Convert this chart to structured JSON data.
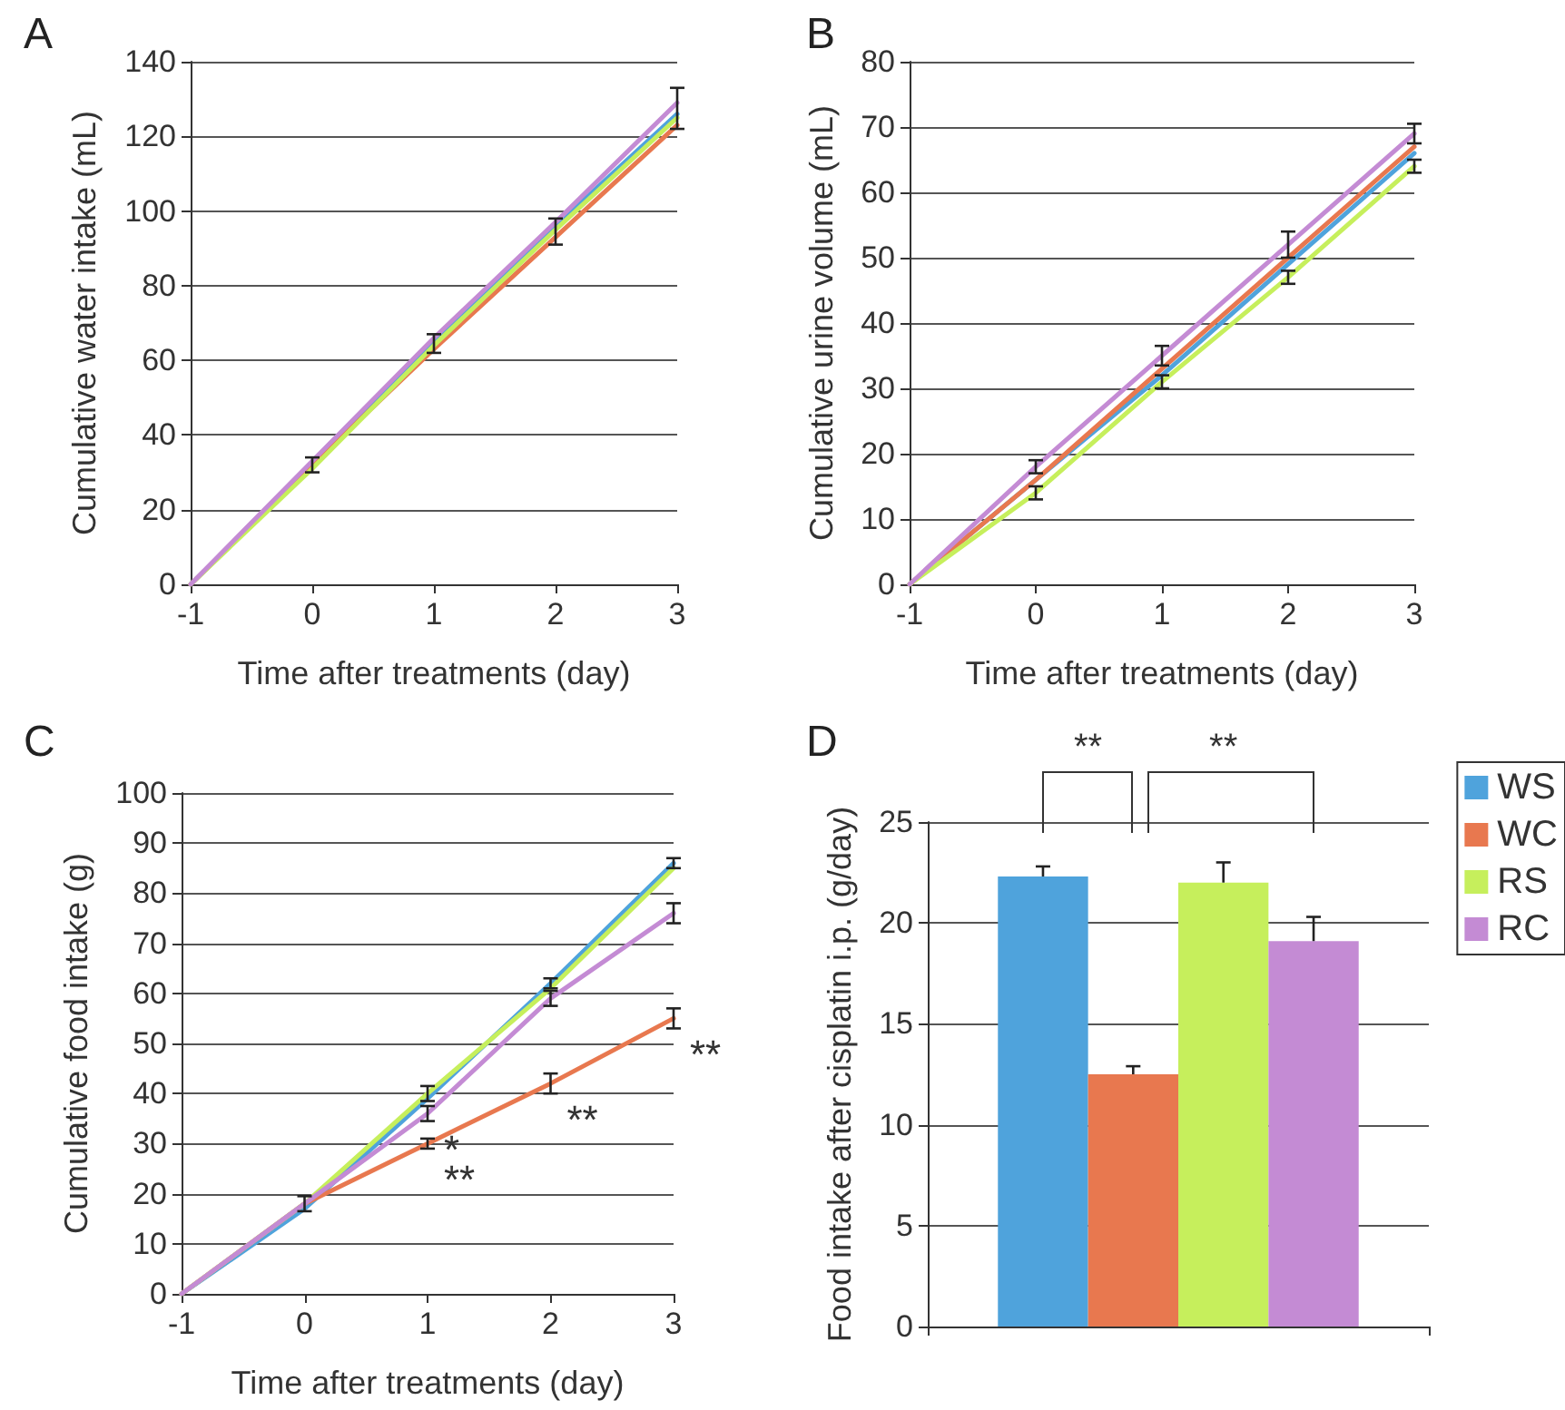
{
  "chart_data": [
    {
      "type": "line",
      "title": "A",
      "xlabel": "Time after treatments (day)",
      "ylabel": "Cumulative water intake (mL)",
      "x": [
        -1,
        0,
        1,
        2,
        3
      ],
      "xlim": [
        -1,
        3
      ],
      "xticks": [
        -1,
        0,
        1,
        2,
        3
      ],
      "ylim": [
        0,
        140
      ],
      "yticks": [
        0,
        20,
        40,
        60,
        80,
        100,
        120,
        140
      ],
      "grid": "y",
      "marker": "none",
      "line_style": "solid",
      "series": [
        {
          "color": "#4fa3dc",
          "values": [
            0,
            32,
            65,
            96,
            126
          ],
          "errors": [
            null,
            2,
            [
              62,
              67
            ],
            [
              91,
              98
            ],
            [
              122,
              133
            ]
          ]
        },
        {
          "color": "#e8784f",
          "values": [
            0,
            32,
            63,
            93,
            123
          ]
        },
        {
          "color": "#c6ef5c",
          "values": [
            0,
            31,
            64,
            95,
            125
          ]
        },
        {
          "color": "#c48bd4",
          "values": [
            0,
            33,
            66,
            97,
            129
          ]
        }
      ]
    },
    {
      "type": "line",
      "title": "B",
      "xlabel": "Time after treatments (day)",
      "ylabel": "Cumulative urine volume (mL)",
      "x": [
        -1,
        0,
        1,
        2,
        3
      ],
      "xlim": [
        -1,
        3
      ],
      "xticks": [
        -1,
        0,
        1,
        2,
        3
      ],
      "ylim": [
        0,
        80
      ],
      "yticks": [
        0,
        10,
        20,
        30,
        40,
        50,
        60,
        70,
        80
      ],
      "grid": "y",
      "marker": "none",
      "line_style": "solid",
      "series": [
        {
          "color": "#4fa3dc",
          "values": [
            0,
            16,
            32,
            49,
            66
          ]
        },
        {
          "color": "#e8784f",
          "values": [
            0,
            16,
            33,
            50,
            67
          ]
        },
        {
          "color": "#c6ef5c",
          "values": [
            0,
            14,
            31,
            47,
            64
          ],
          "errors": [
            null,
            1,
            1,
            1,
            1
          ]
        },
        {
          "color": "#c48bd4",
          "values": [
            0,
            18,
            35,
            52,
            69
          ],
          "errors": [
            null,
            1,
            1.5,
            2,
            1.5
          ]
        }
      ]
    },
    {
      "type": "line",
      "title": "C",
      "xlabel": "Time after treatments (day)",
      "ylabel": "Cumulative food intake (g)",
      "x": [
        -1,
        0,
        1,
        2,
        3
      ],
      "xlim": [
        -1,
        3
      ],
      "xticks": [
        -1,
        0,
        1,
        2,
        3
      ],
      "ylim": [
        0,
        100
      ],
      "yticks": [
        0,
        10,
        20,
        30,
        40,
        50,
        60,
        70,
        80,
        90,
        100
      ],
      "grid": "y",
      "marker": "none",
      "line_style": "solid",
      "series": [
        {
          "color": "#4fa3dc",
          "values": [
            0,
            17,
            39,
            62,
            86
          ],
          "errors": [
            null,
            null,
            null,
            1,
            1
          ]
        },
        {
          "color": "#e8784f",
          "values": [
            0,
            18,
            30,
            42,
            55
          ],
          "errors": [
            null,
            1.5,
            1,
            2,
            2
          ]
        },
        {
          "color": "#c6ef5c",
          "values": [
            0,
            18,
            40,
            61,
            85
          ],
          "errors": [
            null,
            null,
            1.5,
            null,
            null
          ]
        },
        {
          "color": "#c48bd4",
          "values": [
            0,
            18,
            36,
            59,
            76
          ],
          "errors": [
            null,
            null,
            1.5,
            1.5,
            2
          ]
        }
      ],
      "annotations": [
        {
          "text": "*",
          "x": 1,
          "y": 36
        },
        {
          "text": "**",
          "x": 1,
          "y": 30
        },
        {
          "text": "**",
          "x": 2,
          "y": 42
        },
        {
          "text": "**",
          "x": 3,
          "y": 55
        }
      ]
    },
    {
      "type": "bar",
      "title": "D",
      "ylabel": "Food intake after cisplatin i.p. (g/day)",
      "categories": [
        null
      ],
      "ylim": [
        0,
        25
      ],
      "yticks": [
        0,
        5,
        10,
        15,
        20,
        25
      ],
      "grid": "y",
      "legend": "right",
      "tick_labels": "y",
      "series": [
        {
          "name": "WS",
          "color": "#4fa3dc",
          "values": [
            22.3
          ],
          "errors": [
            0.5
          ]
        },
        {
          "name": "WC",
          "color": "#e8784f",
          "values": [
            12.5
          ],
          "errors": [
            0.4
          ]
        },
        {
          "name": "RS",
          "color": "#c6ef5c",
          "values": [
            22.0
          ],
          "errors": [
            1.0
          ]
        },
        {
          "name": "RC",
          "color": "#c48bd4",
          "values": [
            19.1
          ],
          "errors": [
            1.2
          ]
        }
      ],
      "annotations": [
        "**",
        "**"
      ]
    }
  ]
}
